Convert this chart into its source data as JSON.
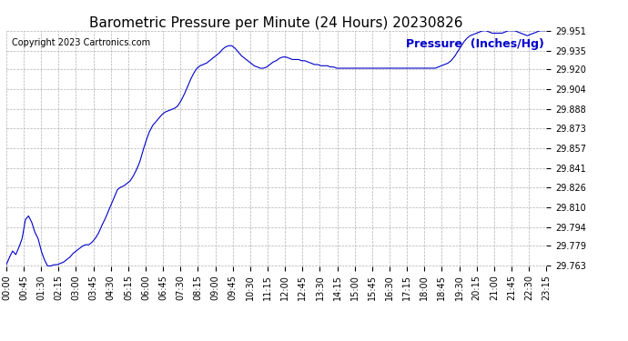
{
  "title": "Barometric Pressure per Minute (24 Hours) 20230826",
  "legend_label": "Pressure  (Inches/Hg)",
  "copyright_text": "Copyright 2023 Cartronics.com",
  "line_color": "#0000CC",
  "legend_color": "#0000CC",
  "background_color": "#ffffff",
  "grid_color": "#b0b0b0",
  "ylim": [
    29.763,
    29.951
  ],
  "yticks": [
    29.763,
    29.779,
    29.794,
    29.81,
    29.826,
    29.841,
    29.857,
    29.873,
    29.888,
    29.904,
    29.92,
    29.935,
    29.951
  ],
  "xtick_labels": [
    "00:00",
    "00:45",
    "01:30",
    "02:15",
    "03:00",
    "03:45",
    "04:30",
    "05:15",
    "06:00",
    "06:45",
    "07:30",
    "08:15",
    "09:00",
    "09:45",
    "10:30",
    "11:15",
    "12:00",
    "12:45",
    "13:30",
    "14:15",
    "15:00",
    "15:45",
    "16:30",
    "17:15",
    "18:00",
    "18:45",
    "19:30",
    "20:15",
    "21:00",
    "21:45",
    "22:30",
    "23:15"
  ],
  "title_fontsize": 11,
  "tick_fontsize": 7,
  "legend_fontsize": 9,
  "copyright_fontsize": 7,
  "pressure_data": [
    29.764,
    29.77,
    29.775,
    29.772,
    29.778,
    29.785,
    29.8,
    29.803,
    29.798,
    29.79,
    29.785,
    29.775,
    29.768,
    29.763,
    29.763,
    29.764,
    29.764,
    29.765,
    29.766,
    29.768,
    29.77,
    29.773,
    29.775,
    29.777,
    29.779,
    29.78,
    29.78,
    29.782,
    29.785,
    29.789,
    29.795,
    29.8,
    29.806,
    29.812,
    29.818,
    29.824,
    29.826,
    29.827,
    29.829,
    29.831,
    29.835,
    29.84,
    29.846,
    29.855,
    29.863,
    29.87,
    29.875,
    29.878,
    29.881,
    29.884,
    29.886,
    29.887,
    29.888,
    29.889,
    29.891,
    29.895,
    29.9,
    29.906,
    29.912,
    29.917,
    29.921,
    29.923,
    29.924,
    29.925,
    29.927,
    29.929,
    29.931,
    29.933,
    29.936,
    29.938,
    29.939,
    29.939,
    29.937,
    29.934,
    29.931,
    29.929,
    29.927,
    29.925,
    29.923,
    29.922,
    29.921,
    29.921,
    29.922,
    29.924,
    29.926,
    29.927,
    29.929,
    29.93,
    29.93,
    29.929,
    29.928,
    29.928,
    29.928,
    29.927,
    29.927,
    29.926,
    29.925,
    29.924,
    29.924,
    29.923,
    29.923,
    29.923,
    29.922,
    29.922,
    29.921,
    29.921,
    29.921,
    29.921,
    29.921,
    29.921,
    29.921,
    29.921,
    29.921,
    29.921,
    29.921,
    29.921,
    29.921,
    29.921,
    29.921,
    29.921,
    29.921,
    29.921,
    29.921,
    29.921,
    29.921,
    29.921,
    29.921,
    29.921,
    29.921,
    29.921,
    29.921,
    29.921,
    29.921,
    29.921,
    29.921,
    29.921,
    29.922,
    29.923,
    29.924,
    29.925,
    29.927,
    29.93,
    29.934,
    29.938,
    29.942,
    29.945,
    29.947,
    29.948,
    29.949,
    29.95,
    29.951,
    29.951,
    29.95,
    29.949,
    29.949,
    29.949,
    29.949,
    29.95,
    29.951,
    29.951,
    29.951,
    29.95,
    29.949,
    29.948,
    29.947,
    29.948,
    29.949,
    29.95,
    29.951,
    29.951,
    29.951
  ]
}
